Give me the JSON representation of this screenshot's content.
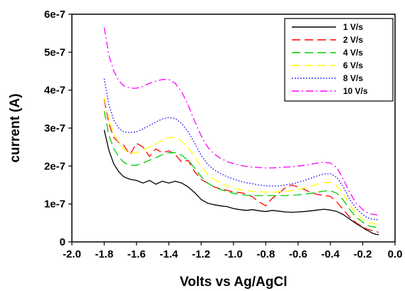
{
  "chart_data": {
    "type": "line",
    "xlabel": "Volts vs Ag/AgCl",
    "ylabel": "current (A)",
    "xlim": [
      -2.0,
      0.0
    ],
    "ylim": [
      0,
      6e-07
    ],
    "x_ticks": [
      "-2.0",
      "-1.8",
      "-1.6",
      "-1.4",
      "-1.2",
      "-1.0",
      "-0.8",
      "-0.6",
      "-0.4",
      "-0.2",
      "0.0"
    ],
    "y_ticks": [
      "0",
      "1e-7",
      "2e-7",
      "3e-7",
      "4e-7",
      "5e-7",
      "6e-7"
    ],
    "grid": false,
    "legend_position": "top-right",
    "series": [
      {
        "name": "1 V/s",
        "color": "#000000",
        "dash": "solid",
        "x": [
          -1.8,
          -1.77,
          -1.74,
          -1.71,
          -1.68,
          -1.64,
          -1.6,
          -1.56,
          -1.52,
          -1.48,
          -1.44,
          -1.4,
          -1.36,
          -1.32,
          -1.28,
          -1.24,
          -1.2,
          -1.16,
          -1.12,
          -1.08,
          -1.04,
          -1.0,
          -0.96,
          -0.92,
          -0.88,
          -0.84,
          -0.8,
          -0.76,
          -0.72,
          -0.68,
          -0.64,
          -0.6,
          -0.56,
          -0.52,
          -0.48,
          -0.44,
          -0.4,
          -0.36,
          -0.32,
          -0.28,
          -0.24,
          -0.2,
          -0.18,
          -0.16,
          -0.14,
          -0.12,
          -0.1
        ],
        "y": [
          2.95e-07,
          2.4e-07,
          2.05e-07,
          1.85e-07,
          1.72e-07,
          1.65e-07,
          1.62e-07,
          1.55e-07,
          1.62e-07,
          1.52e-07,
          1.6e-07,
          1.55e-07,
          1.6e-07,
          1.55e-07,
          1.45e-07,
          1.3e-07,
          1.12e-07,
          1.02e-07,
          9.8e-08,
          9.5e-08,
          9.3e-08,
          8.8e-08,
          8.5e-08,
          8.3e-08,
          8.5e-08,
          8.2e-08,
          8e-08,
          8.3e-08,
          8.1e-08,
          7.9e-08,
          7.8e-08,
          7.9e-08,
          8e-08,
          8.2e-08,
          8.4e-08,
          8.6e-08,
          8.4e-08,
          8e-08,
          7.2e-08,
          6e-08,
          4.8e-08,
          3.8e-08,
          3.2e-08,
          2.8e-08,
          2.3e-08,
          2e-08,
          1.9e-08
        ]
      },
      {
        "name": "2 V/s",
        "color": "#ff0000",
        "dash": "long-dash",
        "x": [
          -1.8,
          -1.77,
          -1.74,
          -1.71,
          -1.68,
          -1.64,
          -1.6,
          -1.56,
          -1.52,
          -1.48,
          -1.44,
          -1.4,
          -1.36,
          -1.32,
          -1.28,
          -1.24,
          -1.2,
          -1.16,
          -1.12,
          -1.08,
          -1.04,
          -1.0,
          -0.96,
          -0.92,
          -0.88,
          -0.84,
          -0.8,
          -0.76,
          -0.72,
          -0.68,
          -0.64,
          -0.6,
          -0.56,
          -0.52,
          -0.48,
          -0.44,
          -0.4,
          -0.36,
          -0.32,
          -0.28,
          -0.24,
          -0.2,
          -0.18,
          -0.16,
          -0.14,
          -0.12,
          -0.1
        ],
        "y": [
          3.75e-07,
          3.1e-07,
          2.75e-07,
          2.62e-07,
          2.55e-07,
          2.3e-07,
          2.6e-07,
          2.5e-07,
          2.25e-07,
          2.45e-07,
          2.35e-07,
          2.4e-07,
          2.3e-07,
          2.1e-07,
          2.15e-07,
          1.85e-07,
          1.65e-07,
          1.55e-07,
          1.45e-07,
          1.4e-07,
          1.36e-07,
          1.32e-07,
          1.3e-07,
          1.27e-07,
          1.18e-07,
          1.05e-07,
          9.5e-08,
          1.15e-07,
          1.28e-07,
          1.42e-07,
          1.5e-07,
          1.45e-07,
          1.38e-07,
          1.3e-07,
          1.25e-07,
          1.22e-07,
          1.2e-07,
          1.05e-07,
          8.5e-08,
          6.5e-08,
          5e-08,
          4e-08,
          3.5e-08,
          3.2e-08,
          3e-08,
          2.8e-08,
          2.5e-08
        ]
      },
      {
        "name": "4 V/s",
        "color": "#00cc00",
        "dash": "long-dash",
        "x": [
          -1.8,
          -1.77,
          -1.74,
          -1.71,
          -1.68,
          -1.64,
          -1.6,
          -1.56,
          -1.52,
          -1.48,
          -1.44,
          -1.4,
          -1.36,
          -1.32,
          -1.28,
          -1.24,
          -1.2,
          -1.16,
          -1.12,
          -1.08,
          -1.04,
          -1.0,
          -0.96,
          -0.92,
          -0.88,
          -0.84,
          -0.8,
          -0.76,
          -0.72,
          -0.68,
          -0.64,
          -0.6,
          -0.56,
          -0.52,
          -0.48,
          -0.44,
          -0.4,
          -0.36,
          -0.32,
          -0.28,
          -0.24,
          -0.2,
          -0.18,
          -0.16,
          -0.14,
          -0.12,
          -0.1
        ],
        "y": [
          3.45e-07,
          2.8e-07,
          2.45e-07,
          2.25e-07,
          2.1e-07,
          2.02e-07,
          2.02e-07,
          2.08e-07,
          2.15e-07,
          2.22e-07,
          2.3e-07,
          2.35e-07,
          2.35e-07,
          2.28e-07,
          2.15e-07,
          1.95e-07,
          1.72e-07,
          1.55e-07,
          1.45e-07,
          1.38e-07,
          1.33e-07,
          1.28e-07,
          1.25e-07,
          1.23e-07,
          1.22e-07,
          1.22e-07,
          1.22e-07,
          1.22e-07,
          1.22e-07,
          1.22e-07,
          1.23e-07,
          1.24e-07,
          1.26e-07,
          1.28e-07,
          1.31e-07,
          1.34e-07,
          1.35e-07,
          1.28e-07,
          1.1e-07,
          8.5e-08,
          6.5e-08,
          5.2e-08,
          4.6e-08,
          4.2e-08,
          4e-08,
          3.9e-08,
          3.8e-08
        ]
      },
      {
        "name": "6 V/s",
        "color": "#ffff00",
        "dash": "long-dash",
        "x": [
          -1.8,
          -1.77,
          -1.74,
          -1.71,
          -1.68,
          -1.64,
          -1.6,
          -1.56,
          -1.52,
          -1.48,
          -1.44,
          -1.4,
          -1.36,
          -1.32,
          -1.28,
          -1.24,
          -1.2,
          -1.16,
          -1.12,
          -1.08,
          -1.04,
          -1.0,
          -0.96,
          -0.92,
          -0.88,
          -0.84,
          -0.8,
          -0.76,
          -0.72,
          -0.68,
          -0.64,
          -0.6,
          -0.56,
          -0.52,
          -0.48,
          -0.44,
          -0.4,
          -0.36,
          -0.32,
          -0.28,
          -0.24,
          -0.2,
          -0.18,
          -0.16,
          -0.14,
          -0.12,
          -0.1
        ],
        "y": [
          3.8e-07,
          3.2e-07,
          2.85e-07,
          2.62e-07,
          2.45e-07,
          2.35e-07,
          2.35e-07,
          2.42e-07,
          2.5e-07,
          2.58e-07,
          2.68e-07,
          2.75e-07,
          2.75e-07,
          2.65e-07,
          2.48e-07,
          2.25e-07,
          1.98e-07,
          1.78e-07,
          1.64e-07,
          1.55e-07,
          1.48e-07,
          1.42e-07,
          1.38e-07,
          1.35e-07,
          1.33e-07,
          1.32e-07,
          1.31e-07,
          1.31e-07,
          1.32e-07,
          1.33e-07,
          1.35e-07,
          1.38e-07,
          1.42e-07,
          1.47e-07,
          1.52e-07,
          1.56e-07,
          1.57e-07,
          1.48e-07,
          1.26e-07,
          9.8e-08,
          7.5e-08,
          6e-08,
          5.4e-08,
          5e-08,
          4.8e-08,
          4.7e-08,
          4.6e-08
        ]
      },
      {
        "name": "8 V/s",
        "color": "#0000ff",
        "dash": "dotted",
        "x": [
          -1.8,
          -1.77,
          -1.74,
          -1.71,
          -1.68,
          -1.64,
          -1.6,
          -1.56,
          -1.52,
          -1.48,
          -1.44,
          -1.4,
          -1.36,
          -1.32,
          -1.28,
          -1.24,
          -1.2,
          -1.16,
          -1.12,
          -1.08,
          -1.04,
          -1.0,
          -0.96,
          -0.92,
          -0.88,
          -0.84,
          -0.8,
          -0.76,
          -0.72,
          -0.68,
          -0.64,
          -0.6,
          -0.56,
          -0.52,
          -0.48,
          -0.44,
          -0.4,
          -0.36,
          -0.32,
          -0.28,
          -0.24,
          -0.2,
          -0.18,
          -0.16,
          -0.14,
          -0.12,
          -0.1
        ],
        "y": [
          4.3e-07,
          3.6e-07,
          3.2e-07,
          3e-07,
          2.9e-07,
          2.88e-07,
          2.9e-07,
          2.98e-07,
          3.07e-07,
          3.16e-07,
          3.24e-07,
          3.28e-07,
          3.25e-07,
          3.12e-07,
          2.9e-07,
          2.6e-07,
          2.28e-07,
          2.05e-07,
          1.9e-07,
          1.8e-07,
          1.72e-07,
          1.66e-07,
          1.6e-07,
          1.56e-07,
          1.53e-07,
          1.5e-07,
          1.48e-07,
          1.47e-07,
          1.48e-07,
          1.5e-07,
          1.53e-07,
          1.57e-07,
          1.62e-07,
          1.68e-07,
          1.74e-07,
          1.79e-07,
          1.8e-07,
          1.7e-07,
          1.45e-07,
          1.12e-07,
          8.8e-08,
          7.2e-08,
          6.6e-08,
          6.2e-08,
          6e-08,
          5.9e-08,
          5.8e-08
        ]
      },
      {
        "name": "10 V/s",
        "color": "#ff00ff",
        "dash": "dash-dot",
        "x": [
          -1.8,
          -1.77,
          -1.74,
          -1.71,
          -1.68,
          -1.64,
          -1.6,
          -1.56,
          -1.52,
          -1.48,
          -1.44,
          -1.4,
          -1.36,
          -1.32,
          -1.28,
          -1.24,
          -1.2,
          -1.16,
          -1.12,
          -1.08,
          -1.04,
          -1.0,
          -0.96,
          -0.92,
          -0.88,
          -0.84,
          -0.8,
          -0.76,
          -0.72,
          -0.68,
          -0.64,
          -0.6,
          -0.56,
          -0.52,
          -0.48,
          -0.44,
          -0.4,
          -0.36,
          -0.32,
          -0.28,
          -0.24,
          -0.2,
          -0.18,
          -0.16,
          -0.14,
          -0.12,
          -0.1
        ],
        "y": [
          5.65e-07,
          4.9e-07,
          4.5e-07,
          4.25e-07,
          4.12e-07,
          4.05e-07,
          4.05e-07,
          4.1e-07,
          4.18e-07,
          4.24e-07,
          4.28e-07,
          4.28e-07,
          4.18e-07,
          3.95e-07,
          3.6e-07,
          3.18e-07,
          2.8e-07,
          2.5e-07,
          2.32e-07,
          2.2e-07,
          2.12e-07,
          2.06e-07,
          2.02e-07,
          1.99e-07,
          1.97e-07,
          1.96e-07,
          1.95e-07,
          1.95e-07,
          1.96e-07,
          1.97e-07,
          1.98e-07,
          2e-07,
          2.02e-07,
          2.05e-07,
          2.08e-07,
          2.1e-07,
          2.08e-07,
          1.95e-07,
          1.65e-07,
          1.3e-07,
          1.02e-07,
          8.5e-08,
          7.9e-08,
          7.5e-08,
          7.3e-08,
          7.2e-08,
          7e-08
        ]
      }
    ]
  }
}
